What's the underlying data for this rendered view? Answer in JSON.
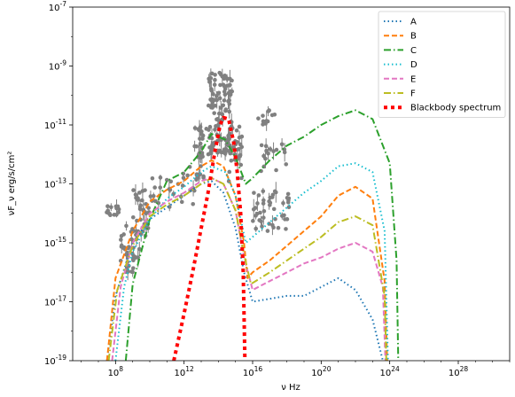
{
  "chart_data": {
    "type": "line",
    "title": "",
    "xlabel": "ν Hz",
    "ylabel": "νF_ν erg/s/cm²",
    "xscale": "log",
    "yscale": "log",
    "xlim_exp": [
      5.5,
      31
    ],
    "ylim_exp": [
      -19,
      -7
    ],
    "x_ticks": [
      {
        "exp": 8,
        "label": "10^8"
      },
      {
        "exp": 12,
        "label": "10^12"
      },
      {
        "exp": 16,
        "label": "10^16"
      },
      {
        "exp": 20,
        "label": "10^20"
      },
      {
        "exp": 24,
        "label": "10^24"
      },
      {
        "exp": 28,
        "label": "10^28"
      }
    ],
    "y_ticks": [
      {
        "exp": -7,
        "label": "10^-7"
      },
      {
        "exp": -9,
        "label": "10^-9"
      },
      {
        "exp": -11,
        "label": "10^-11"
      },
      {
        "exp": -13,
        "label": "10^-13"
      },
      {
        "exp": -15,
        "label": "10^-15"
      },
      {
        "exp": -17,
        "label": "10^-17"
      },
      {
        "exp": -19,
        "label": "10^-19"
      }
    ],
    "grid": false,
    "legend_position": "top-right",
    "series": [
      {
        "name": "A",
        "color": "#1f77b4",
        "dash": "dotted",
        "points": [
          [
            7.5,
            -19
          ],
          [
            8,
            -16.8
          ],
          [
            9,
            -15
          ],
          [
            10,
            -14.2
          ],
          [
            11,
            -13.8
          ],
          [
            12,
            -13.4
          ],
          [
            13,
            -13.0
          ],
          [
            13.6,
            -12.9
          ],
          [
            14.3,
            -13.3
          ],
          [
            15,
            -14.5
          ],
          [
            15.5,
            -16
          ],
          [
            16,
            -17.0
          ],
          [
            17,
            -16.9
          ],
          [
            18,
            -16.8
          ],
          [
            19,
            -16.8
          ],
          [
            20,
            -16.5
          ],
          [
            21,
            -16.2
          ],
          [
            22,
            -16.6
          ],
          [
            23,
            -17.6
          ],
          [
            23.6,
            -19
          ]
        ]
      },
      {
        "name": "B",
        "color": "#ff7f0e",
        "dash": "dashed",
        "points": [
          [
            7.5,
            -19
          ],
          [
            8,
            -16.2
          ],
          [
            9,
            -14.6
          ],
          [
            10,
            -13.6
          ],
          [
            11,
            -13.2
          ],
          [
            12,
            -12.9
          ],
          [
            13,
            -12.4
          ],
          [
            13.6,
            -12.2
          ],
          [
            14.3,
            -12.4
          ],
          [
            15,
            -13.4
          ],
          [
            15.5,
            -15
          ],
          [
            15.7,
            -16.2
          ],
          [
            16,
            -16.0
          ],
          [
            17,
            -15.6
          ],
          [
            18,
            -15.1
          ],
          [
            19,
            -14.6
          ],
          [
            20,
            -14.1
          ],
          [
            21,
            -13.4
          ],
          [
            22,
            -13.1
          ],
          [
            23,
            -13.5
          ],
          [
            23.7,
            -16.3
          ],
          [
            23.85,
            -19
          ]
        ]
      },
      {
        "name": "C",
        "color": "#2ca02c",
        "dash": "dashdot",
        "points": [
          [
            8.6,
            -19
          ],
          [
            9,
            -16.4
          ],
          [
            10,
            -14.2
          ],
          [
            11,
            -12.9
          ],
          [
            12,
            -12.6
          ],
          [
            13,
            -11.9
          ],
          [
            13.6,
            -11.3
          ],
          [
            14.4,
            -11.5
          ],
          [
            15,
            -12.1
          ],
          [
            15.6,
            -13.0
          ],
          [
            16,
            -12.8
          ],
          [
            17,
            -12.2
          ],
          [
            18,
            -11.7
          ],
          [
            19,
            -11.4
          ],
          [
            20,
            -11.0
          ],
          [
            21,
            -10.7
          ],
          [
            22,
            -10.5
          ],
          [
            23,
            -10.8
          ],
          [
            24,
            -12.3
          ],
          [
            24.4,
            -15.6
          ],
          [
            24.5,
            -19
          ]
        ]
      },
      {
        "name": "D",
        "color": "#17becf",
        "dash": "dotted",
        "points": [
          [
            8,
            -19
          ],
          [
            8.5,
            -16.5
          ],
          [
            9,
            -15.3
          ],
          [
            10,
            -14.2
          ],
          [
            11,
            -13.5
          ],
          [
            12,
            -13.1
          ],
          [
            13,
            -12.6
          ],
          [
            13.6,
            -12.4
          ],
          [
            14.4,
            -12.6
          ],
          [
            15,
            -13.4
          ],
          [
            15.6,
            -15
          ],
          [
            16,
            -14.8
          ],
          [
            17,
            -14.3
          ],
          [
            18,
            -13.8
          ],
          [
            19,
            -13.3
          ],
          [
            20,
            -12.9
          ],
          [
            21,
            -12.4
          ],
          [
            22,
            -12.3
          ],
          [
            23,
            -12.6
          ],
          [
            23.7,
            -14.6
          ],
          [
            23.9,
            -19
          ]
        ]
      },
      {
        "name": "E",
        "color": "#e377c2",
        "dash": "dashed",
        "points": [
          [
            7.8,
            -19
          ],
          [
            8.3,
            -16.5
          ],
          [
            9,
            -15
          ],
          [
            10,
            -14.0
          ],
          [
            11,
            -13.6
          ],
          [
            12,
            -13.3
          ],
          [
            13,
            -12.9
          ],
          [
            13.6,
            -12.8
          ],
          [
            14.3,
            -13.0
          ],
          [
            15,
            -13.9
          ],
          [
            15.5,
            -15.5
          ],
          [
            16,
            -16.6
          ],
          [
            17,
            -16.3
          ],
          [
            18,
            -16.0
          ],
          [
            19,
            -15.7
          ],
          [
            20,
            -15.5
          ],
          [
            21,
            -15.2
          ],
          [
            22,
            -15.0
          ],
          [
            23,
            -15.3
          ],
          [
            23.6,
            -16.5
          ],
          [
            23.75,
            -19
          ]
        ]
      },
      {
        "name": "F",
        "color": "#bcbd22",
        "dash": "dashdot",
        "points": [
          [
            7.6,
            -19
          ],
          [
            8.1,
            -16.6
          ],
          [
            9,
            -15.1
          ],
          [
            10,
            -14.1
          ],
          [
            11,
            -13.7
          ],
          [
            12,
            -13.4
          ],
          [
            13,
            -13.0
          ],
          [
            13.6,
            -12.8
          ],
          [
            14.3,
            -13.0
          ],
          [
            15,
            -13.9
          ],
          [
            15.5,
            -15.4
          ],
          [
            15.9,
            -16.4
          ],
          [
            17,
            -16.0
          ],
          [
            18,
            -15.6
          ],
          [
            19,
            -15.2
          ],
          [
            20,
            -14.8
          ],
          [
            21,
            -14.3
          ],
          [
            22,
            -14.1
          ],
          [
            23,
            -14.4
          ],
          [
            23.7,
            -16.8
          ],
          [
            23.8,
            -19
          ]
        ]
      },
      {
        "name": "Blackbody spectrum",
        "color": "#ff0000",
        "dash": "bigdot",
        "points": [
          [
            11.4,
            -19
          ],
          [
            12,
            -17.4
          ],
          [
            12.5,
            -16.0
          ],
          [
            13,
            -14.5
          ],
          [
            13.4,
            -13.3
          ],
          [
            13.8,
            -11.9
          ],
          [
            14.1,
            -11.0
          ],
          [
            14.3,
            -10.75
          ],
          [
            14.6,
            -10.8
          ],
          [
            14.9,
            -11.6
          ],
          [
            15.1,
            -12.6
          ],
          [
            15.3,
            -14.0
          ],
          [
            15.45,
            -16.0
          ],
          [
            15.55,
            -19
          ]
        ]
      }
    ],
    "data_clusters": [
      {
        "x": [
          7.4,
          8.2
        ],
        "y": [
          -14.2,
          -13.7
        ],
        "n": 14
      },
      {
        "x": [
          8.2,
          9.4
        ],
        "y": [
          -16.0,
          -14.4
        ],
        "n": 40
      },
      {
        "x": [
          9.0,
          10.0
        ],
        "y": [
          -14.8,
          -13.2
        ],
        "n": 35
      },
      {
        "x": [
          10.0,
          12.8
        ],
        "y": [
          -13.8,
          -12.4
        ],
        "n": 30
      },
      {
        "x": [
          12.6,
          13.6
        ],
        "y": [
          -12.8,
          -11.0
        ],
        "n": 35
      },
      {
        "x": [
          13.4,
          14.8
        ],
        "y": [
          -12.0,
          -9.2
        ],
        "n": 110
      },
      {
        "x": [
          14.6,
          15.4
        ],
        "y": [
          -13.0,
          -11.0
        ],
        "n": 30
      },
      {
        "x": [
          16.2,
          17.4
        ],
        "y": [
          -11.0,
          -10.4
        ],
        "n": 14
      },
      {
        "x": [
          16.0,
          18.2
        ],
        "y": [
          -14.6,
          -13.2
        ],
        "n": 45
      },
      {
        "x": [
          16.4,
          18.0
        ],
        "y": [
          -12.6,
          -11.6
        ],
        "n": 16
      }
    ],
    "data_color": "#808080"
  }
}
